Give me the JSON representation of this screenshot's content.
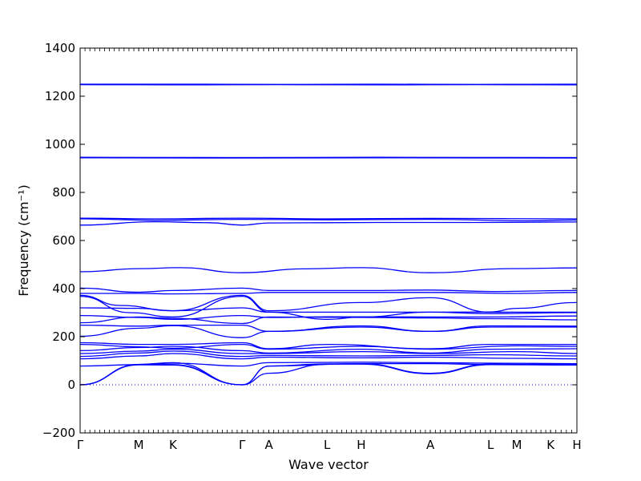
{
  "chart_data": {
    "type": "line",
    "title": "",
    "xlabel": "Wave vector",
    "ylabel": "Frequency (cm⁻¹)",
    "ylim": [
      -200,
      1400
    ],
    "yticks": [
      -200,
      0,
      200,
      400,
      600,
      800,
      1000,
      1200,
      1400
    ],
    "xlim": [
      0,
      1
    ],
    "kpoints": [
      {
        "label": "Γ",
        "x": 0.0
      },
      {
        "label": "M",
        "x": 0.118
      },
      {
        "label": "K",
        "x": 0.187
      },
      {
        "label": "Γ",
        "x": 0.326
      },
      {
        "label": "A",
        "x": 0.38
      },
      {
        "label": "L",
        "x": 0.497
      },
      {
        "label": "H",
        "x": 0.566
      },
      {
        "label": "A",
        "x": 0.705
      },
      {
        "label": "L",
        "x": 0.826
      },
      {
        "label": "M",
        "x": 0.879
      },
      {
        "label": "K",
        "x": 0.947
      },
      {
        "label": "H",
        "x": 1.0
      }
    ],
    "line_color": "#0000ff",
    "zero_line": true,
    "grid": false,
    "series": [
      {
        "values": [
          [
            0,
            1248
          ],
          [
            0.2,
            1247
          ],
          [
            0.4,
            1248
          ],
          [
            0.6,
            1247
          ],
          [
            0.8,
            1248
          ],
          [
            1,
            1247
          ]
        ]
      },
      {
        "values": [
          [
            0,
            1250
          ],
          [
            0.2,
            1250
          ],
          [
            0.4,
            1249
          ],
          [
            0.6,
            1250
          ],
          [
            0.8,
            1249
          ],
          [
            1,
            1250
          ]
        ]
      },
      {
        "values": [
          [
            0,
            944
          ],
          [
            0.3,
            943
          ],
          [
            0.6,
            944
          ],
          [
            1,
            943
          ]
        ]
      },
      {
        "values": [
          [
            0,
            946
          ],
          [
            0.3,
            945
          ],
          [
            0.6,
            946
          ],
          [
            1,
            945
          ]
        ]
      },
      {
        "values": [
          [
            0,
            693
          ],
          [
            0.15,
            690
          ],
          [
            0.326,
            693
          ],
          [
            0.5,
            690
          ],
          [
            0.705,
            692
          ],
          [
            1,
            690
          ]
        ]
      },
      {
        "values": [
          [
            0,
            690
          ],
          [
            0.15,
            684
          ],
          [
            0.326,
            688
          ],
          [
            0.5,
            686
          ],
          [
            0.705,
            688
          ],
          [
            0.9,
            682
          ],
          [
            1,
            685
          ]
        ]
      },
      {
        "values": [
          [
            0,
            664
          ],
          [
            0.15,
            678
          ],
          [
            0.26,
            674
          ],
          [
            0.326,
            664
          ],
          [
            0.38,
            673
          ],
          [
            0.6,
            675
          ],
          [
            0.8,
            675
          ],
          [
            1,
            677
          ]
        ]
      },
      {
        "values": [
          [
            0,
            470
          ],
          [
            0.12,
            483
          ],
          [
            0.2,
            487
          ],
          [
            0.326,
            466
          ],
          [
            0.45,
            482
          ],
          [
            0.566,
            487
          ],
          [
            0.705,
            466
          ],
          [
            0.87,
            483
          ],
          [
            1,
            486
          ]
        ]
      },
      {
        "values": [
          [
            0,
            402
          ],
          [
            0.118,
            385
          ],
          [
            0.187,
            392
          ],
          [
            0.326,
            402
          ],
          [
            0.38,
            392
          ],
          [
            0.566,
            392
          ],
          [
            0.705,
            394
          ],
          [
            0.826,
            388
          ],
          [
            1,
            392
          ]
        ]
      },
      {
        "values": [
          [
            0,
            380
          ],
          [
            0.118,
            380
          ],
          [
            0.187,
            378
          ],
          [
            0.326,
            380
          ],
          [
            0.38,
            384
          ],
          [
            0.566,
            384
          ],
          [
            0.705,
            384
          ],
          [
            0.88,
            380
          ],
          [
            1,
            384
          ]
        ]
      },
      {
        "values": [
          [
            0,
            372
          ],
          [
            0.08,
            330
          ],
          [
            0.187,
            308
          ],
          [
            0.326,
            372
          ],
          [
            0.38,
            308
          ],
          [
            0.566,
            342
          ],
          [
            0.705,
            362
          ],
          [
            0.826,
            302
          ],
          [
            1,
            302
          ]
        ]
      },
      {
        "values": [
          [
            0,
            368
          ],
          [
            0.1,
            300
          ],
          [
            0.187,
            282
          ],
          [
            0.326,
            368
          ],
          [
            0.38,
            302
          ],
          [
            0.5,
            272
          ],
          [
            0.566,
            282
          ],
          [
            0.705,
            302
          ],
          [
            0.826,
            303
          ],
          [
            0.879,
            318
          ],
          [
            1,
            342
          ]
        ]
      },
      {
        "values": [
          [
            0,
            320
          ],
          [
            0.118,
            318
          ],
          [
            0.187,
            308
          ],
          [
            0.326,
            320
          ],
          [
            0.38,
            302
          ],
          [
            0.566,
            302
          ],
          [
            0.705,
            302
          ],
          [
            0.826,
            296
          ],
          [
            1,
            300
          ]
        ]
      },
      {
        "values": [
          [
            0,
            288
          ],
          [
            0.118,
            280
          ],
          [
            0.187,
            272
          ],
          [
            0.326,
            288
          ],
          [
            0.38,
            280
          ],
          [
            0.5,
            283
          ],
          [
            0.705,
            282
          ],
          [
            0.826,
            282
          ],
          [
            1,
            286
          ]
        ]
      },
      {
        "values": [
          [
            0,
            258
          ],
          [
            0.118,
            282
          ],
          [
            0.187,
            276
          ],
          [
            0.326,
            255
          ],
          [
            0.38,
            282
          ],
          [
            0.566,
            280
          ],
          [
            0.705,
            278
          ],
          [
            0.826,
            275
          ],
          [
            1,
            270
          ]
        ]
      },
      {
        "values": [
          [
            0,
            248
          ],
          [
            0.118,
            244
          ],
          [
            0.187,
            248
          ],
          [
            0.326,
            248
          ],
          [
            0.38,
            222
          ],
          [
            0.566,
            245
          ],
          [
            0.705,
            222
          ],
          [
            0.826,
            245
          ],
          [
            1,
            244
          ]
        ]
      },
      {
        "values": [
          [
            0,
            202
          ],
          [
            0.118,
            235
          ],
          [
            0.187,
            246
          ],
          [
            0.326,
            196
          ],
          [
            0.38,
            222
          ],
          [
            0.566,
            240
          ],
          [
            0.705,
            222
          ],
          [
            0.826,
            240
          ],
          [
            1,
            240
          ]
        ]
      },
      {
        "values": [
          [
            0,
            175
          ],
          [
            0.118,
            168
          ],
          [
            0.187,
            168
          ],
          [
            0.326,
            175
          ],
          [
            0.38,
            150
          ],
          [
            0.5,
            168
          ],
          [
            0.705,
            150
          ],
          [
            0.826,
            168
          ],
          [
            1,
            168
          ]
        ]
      },
      {
        "values": [
          [
            0,
            168
          ],
          [
            0.118,
            158
          ],
          [
            0.187,
            152
          ],
          [
            0.326,
            168
          ],
          [
            0.38,
            148
          ],
          [
            0.566,
            160
          ],
          [
            0.705,
            148
          ],
          [
            0.88,
            162
          ],
          [
            1,
            160
          ]
        ]
      },
      {
        "values": [
          [
            0,
            142
          ],
          [
            0.118,
            155
          ],
          [
            0.187,
            160
          ],
          [
            0.326,
            142
          ],
          [
            0.38,
            132
          ],
          [
            0.566,
            148
          ],
          [
            0.705,
            132
          ],
          [
            0.826,
            148
          ],
          [
            1,
            150
          ]
        ]
      },
      {
        "values": [
          [
            0,
            130
          ],
          [
            0.118,
            140
          ],
          [
            0.187,
            148
          ],
          [
            0.326,
            130
          ],
          [
            0.38,
            130
          ],
          [
            0.566,
            138
          ],
          [
            0.705,
            130
          ],
          [
            0.88,
            138
          ],
          [
            1,
            130
          ]
        ]
      },
      {
        "values": [
          [
            0,
            118
          ],
          [
            0.118,
            132
          ],
          [
            0.187,
            140
          ],
          [
            0.326,
            118
          ],
          [
            0.38,
            122
          ],
          [
            0.566,
            120
          ],
          [
            0.705,
            122
          ],
          [
            0.826,
            125
          ],
          [
            1,
            120
          ]
        ]
      },
      {
        "values": [
          [
            0,
            108
          ],
          [
            0.118,
            120
          ],
          [
            0.187,
            130
          ],
          [
            0.326,
            108
          ],
          [
            0.38,
            115
          ],
          [
            0.566,
            112
          ],
          [
            0.705,
            115
          ],
          [
            0.88,
            110
          ],
          [
            1,
            108
          ]
        ]
      },
      {
        "values": [
          [
            0,
            78
          ],
          [
            0.118,
            84
          ],
          [
            0.187,
            90
          ],
          [
            0.326,
            78
          ],
          [
            0.38,
            92
          ],
          [
            0.566,
            94
          ],
          [
            0.705,
            92
          ],
          [
            0.826,
            90
          ],
          [
            1,
            88
          ]
        ]
      },
      {
        "values": [
          [
            0,
            0
          ],
          [
            0.118,
            85
          ],
          [
            0.187,
            92
          ],
          [
            0.326,
            0
          ],
          [
            0.38,
            78
          ],
          [
            0.566,
            88
          ],
          [
            0.705,
            88
          ],
          [
            0.826,
            84
          ],
          [
            1,
            85
          ]
        ]
      },
      {
        "values": [
          [
            0,
            0
          ],
          [
            0.118,
            84
          ],
          [
            0.187,
            84
          ],
          [
            0.326,
            0
          ],
          [
            0.38,
            78
          ],
          [
            0.5,
            87
          ],
          [
            0.566,
            88
          ],
          [
            0.705,
            48
          ],
          [
            0.826,
            86
          ],
          [
            1,
            82
          ]
        ]
      },
      {
        "values": [
          [
            0,
            0
          ],
          [
            0.118,
            83
          ],
          [
            0.187,
            82
          ],
          [
            0.326,
            0
          ],
          [
            0.38,
            48
          ],
          [
            0.5,
            86
          ],
          [
            0.566,
            86
          ],
          [
            0.705,
            46
          ],
          [
            0.826,
            84
          ],
          [
            1,
            82
          ]
        ]
      }
    ]
  }
}
